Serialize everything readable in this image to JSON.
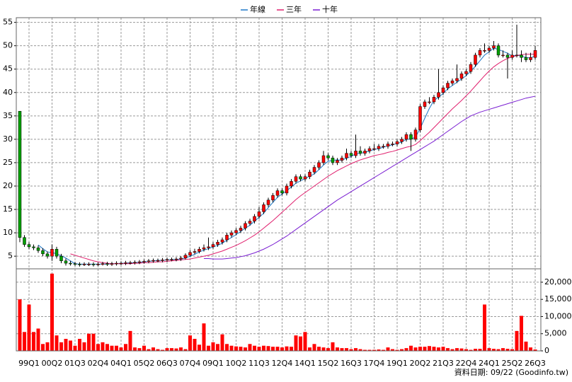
{
  "chart_data": [
    {
      "type": "candlestick",
      "categories": [
        null,
        null,
        "99Q1",
        null,
        null,
        null,
        null,
        "00Q2",
        null,
        null,
        null,
        null,
        "01Q3",
        null,
        null,
        null,
        null,
        "02Q4",
        null,
        null,
        null,
        null,
        "04Q1",
        null,
        null,
        null,
        null,
        "05Q2",
        null,
        null,
        null,
        null,
        "06Q3",
        null,
        null,
        null,
        null,
        "07Q4",
        null,
        null,
        null,
        null,
        "09Q1",
        null,
        null,
        null,
        null,
        "10Q2",
        null,
        null,
        null,
        null,
        "11Q3",
        null,
        null,
        null,
        null,
        "12Q4",
        null,
        null,
        null,
        null,
        "14Q1",
        null,
        null,
        null,
        null,
        "15Q2",
        null,
        null,
        null,
        null,
        "16Q3",
        null,
        null,
        null,
        null,
        "17Q4",
        null,
        null,
        null,
        null,
        "19Q1",
        null,
        null,
        null,
        null,
        "20Q2",
        null,
        null,
        null,
        null,
        "21Q3",
        null,
        null,
        null,
        null,
        "22Q4",
        null,
        null,
        null,
        null,
        "24Q1",
        null,
        null,
        null,
        null,
        "25Q2",
        null,
        null,
        null,
        null,
        "26Q3"
      ],
      "open": [
        36,
        9,
        7.5,
        7,
        6.8,
        6.2,
        5.5,
        5,
        6.5,
        5,
        4,
        3.5,
        3.4,
        3.3,
        3.2,
        3.3,
        3.3,
        3.2,
        3.3,
        3.4,
        3.3,
        3.4,
        3.5,
        3.5,
        3.6,
        3.6,
        3.7,
        3.8,
        3.9,
        4,
        4.1,
        4.1,
        4.2,
        4.3,
        4.3,
        4.4,
        4.6,
        5.2,
        5.8,
        6,
        6.5,
        6.8,
        7,
        7.5,
        8,
        8.5,
        9.5,
        10,
        10.5,
        11,
        12,
        12.5,
        13.5,
        14.5,
        16,
        17,
        18,
        19,
        18.5,
        20,
        21,
        22,
        21.5,
        22,
        23,
        24,
        25,
        26.5,
        26,
        25,
        25.5,
        26,
        27,
        26.5,
        27.5,
        27,
        27.5,
        28,
        28,
        28.5,
        28.5,
        29,
        29,
        29.5,
        30,
        31,
        30,
        32,
        37,
        38,
        38,
        39,
        40,
        41,
        42,
        42.5,
        43,
        44,
        44.5,
        46,
        48,
        49,
        49,
        49.5,
        50,
        48,
        48,
        47.5,
        48,
        48,
        47.5,
        47,
        47.5
      ],
      "high": [
        36,
        9.5,
        8,
        7.5,
        7.3,
        6.7,
        6,
        7.5,
        7,
        5.5,
        4.5,
        4,
        3.8,
        3.7,
        3.7,
        3.7,
        3.7,
        3.7,
        3.8,
        3.8,
        3.8,
        3.9,
        3.9,
        4,
        4,
        4.1,
        4.2,
        4.3,
        4.4,
        4.5,
        4.5,
        4.6,
        4.7,
        4.7,
        4.8,
        5,
        5.6,
        6.3,
        6.6,
        7,
        7.5,
        9,
        8,
        8.5,
        9,
        10,
        10.5,
        11,
        11.5,
        12.5,
        13,
        14,
        15.5,
        16.5,
        17.5,
        18.5,
        19.5,
        19.5,
        20.5,
        21.5,
        22.5,
        22.5,
        22.5,
        23.5,
        24.5,
        25.5,
        27.5,
        27,
        26.5,
        26,
        26.5,
        28,
        27.5,
        31,
        28.5,
        28,
        28.5,
        29,
        29,
        29,
        29.5,
        29.5,
        30,
        30.5,
        31.5,
        31.5,
        32.5,
        37.5,
        38.5,
        39,
        39.5,
        45,
        41.5,
        42.5,
        43,
        46,
        44.5,
        45,
        46.5,
        48.5,
        49.5,
        50.5,
        50,
        51,
        50.5,
        49,
        48.5,
        49,
        54.5,
        49,
        48.5,
        48.5,
        50
      ],
      "low": [
        8,
        7,
        6.5,
        6.3,
        5.7,
        5,
        4.5,
        4,
        4.5,
        3.5,
        3,
        3,
        2.9,
        2.8,
        2.9,
        2.9,
        2.8,
        2.9,
        3,
        2.9,
        2.9,
        3,
        3.1,
        3.1,
        3.2,
        3.2,
        3.3,
        3.4,
        3.5,
        3.6,
        3.7,
        3.7,
        3.8,
        3.9,
        3.9,
        4,
        4.3,
        4.8,
        5.4,
        5.6,
        6,
        6.3,
        6.6,
        7,
        7.5,
        8,
        9,
        9.5,
        10,
        10.5,
        11.5,
        12,
        13,
        14,
        15.5,
        16.5,
        17.5,
        18,
        18,
        19.5,
        20.5,
        21,
        21,
        21.5,
        22.5,
        23.5,
        24.5,
        25.5,
        24.5,
        24.5,
        25,
        25.5,
        26,
        26,
        26.5,
        26.5,
        27,
        27.5,
        27.5,
        28,
        28,
        28.5,
        28.5,
        29,
        29.5,
        27.5,
        29.5,
        31.5,
        36.5,
        37.5,
        37.5,
        38.5,
        39.5,
        40.5,
        41.5,
        42,
        42.5,
        43.5,
        44,
        45.5,
        47.5,
        48.5,
        48.5,
        49,
        47.5,
        47.5,
        43,
        47,
        47.5,
        46.5,
        46.5,
        46.5,
        47
      ],
      "close": [
        9,
        7.5,
        7,
        6.8,
        6.2,
        5.5,
        5,
        6.5,
        5,
        4,
        3.5,
        3.4,
        3.3,
        3.2,
        3.3,
        3.3,
        3.2,
        3.3,
        3.4,
        3.3,
        3.4,
        3.5,
        3.5,
        3.6,
        3.6,
        3.7,
        3.8,
        3.9,
        4,
        4.1,
        4.1,
        4.2,
        4.3,
        4.3,
        4.4,
        4.6,
        5.2,
        5.8,
        6,
        6.5,
        6.8,
        7,
        7.5,
        8,
        8.5,
        9.5,
        10,
        10.5,
        11,
        12,
        12.5,
        13.5,
        14.5,
        16,
        17,
        18,
        19,
        18.5,
        20,
        21,
        22,
        21.5,
        22,
        23,
        24,
        25,
        26.5,
        26,
        25,
        25.5,
        26,
        27,
        26.5,
        27.5,
        27,
        27.5,
        28,
        28,
        28.5,
        28.5,
        29,
        29,
        29.5,
        30,
        31,
        30,
        32,
        37,
        38,
        38,
        39,
        40,
        41,
        42,
        42.5,
        43,
        44,
        44.5,
        46,
        48,
        49,
        49,
        49.5,
        50,
        48,
        48,
        47.5,
        48,
        48,
        47.5,
        47,
        47.5,
        49
      ],
      "up_color": "#ff0000",
      "down_color": "#00a000",
      "series": [
        {
          "name": "年線",
          "color": "#1e78c8",
          "values": [
            null,
            null,
            null,
            null,
            7.4,
            6.6,
            5.9,
            5.8,
            5.5,
            5.1,
            4.6,
            4,
            3.4,
            3.3,
            3.3,
            3.3,
            3.3,
            3.3,
            3.3,
            3.3,
            3.4,
            3.4,
            3.5,
            3.5,
            3.6,
            3.6,
            3.7,
            3.8,
            3.9,
            4,
            4.1,
            4.1,
            4.2,
            4.3,
            4.3,
            4.4,
            4.6,
            5,
            5.4,
            5.9,
            6.3,
            6.6,
            7,
            7.3,
            7.8,
            8.4,
            9,
            9.6,
            10.3,
            11,
            11.6,
            12.5,
            13.3,
            14.2,
            15.4,
            16.5,
            17.6,
            18.3,
            19,
            19.8,
            20.6,
            21.1,
            21.6,
            22.1,
            22.6,
            23.5,
            24.5,
            25.3,
            25.5,
            25.6,
            25.5,
            26,
            26.3,
            26.9,
            27,
            27.2,
            27.5,
            27.8,
            28,
            28.3,
            28.6,
            28.8,
            29.1,
            29.4,
            30,
            30,
            30.5,
            32.3,
            34.5,
            36.6,
            38.3,
            39,
            39.8,
            40.8,
            41.5,
            42.2,
            42.9,
            43.6,
            44.6,
            45.6,
            46.8,
            48,
            48.7,
            49.5,
            49.2,
            48.8,
            48.4,
            47.8,
            48,
            47.8,
            47.5,
            47.4,
            47.8
          ]
        },
        {
          "name": "三年",
          "color": "#e0206e",
          "values": [
            null,
            null,
            null,
            null,
            null,
            null,
            null,
            null,
            null,
            null,
            null,
            5.5,
            5.2,
            4.9,
            4.6,
            4.3,
            4,
            3.8,
            3.6,
            3.5,
            3.4,
            3.4,
            3.4,
            3.4,
            3.4,
            3.5,
            3.5,
            3.6,
            3.6,
            3.7,
            3.8,
            3.8,
            3.9,
            4,
            4.1,
            4.2,
            4.3,
            4.4,
            4.6,
            4.8,
            5,
            5.2,
            5.5,
            5.8,
            6.1,
            6.5,
            6.9,
            7.3,
            7.8,
            8.3,
            8.9,
            9.5,
            10.2,
            11,
            11.8,
            12.6,
            13.5,
            14.4,
            15.3,
            16.2,
            17.1,
            17.9,
            18.6,
            19.3,
            20,
            20.7,
            21.4,
            22.1,
            22.7,
            23.3,
            23.8,
            24.3,
            24.8,
            25.2,
            25.6,
            25.9,
            26.2,
            26.5,
            26.7,
            26.9,
            27.2,
            27.4,
            27.7,
            28,
            28.3,
            28.5,
            28.9,
            29.7,
            30.6,
            31.5,
            32.5,
            33.5,
            34.5,
            35.5,
            36.5,
            37.4,
            38.3,
            39.3,
            40.3,
            41.4,
            42.5,
            43.6,
            44.6,
            45.5,
            46.2,
            46.8,
            47.3,
            47.6,
            47.9,
            48.1,
            48.2,
            48.2,
            48.2
          ]
        },
        {
          "name": "十年",
          "color": "#7a1ed2",
          "values": [
            null,
            null,
            null,
            null,
            null,
            null,
            null,
            null,
            null,
            null,
            null,
            null,
            null,
            null,
            null,
            null,
            null,
            null,
            null,
            null,
            null,
            null,
            null,
            null,
            null,
            null,
            null,
            null,
            null,
            null,
            null,
            null,
            null,
            null,
            null,
            null,
            null,
            null,
            null,
            null,
            4.5,
            4.5,
            4.4,
            4.4,
            4.4,
            4.5,
            4.6,
            4.7,
            4.9,
            5.1,
            5.4,
            5.7,
            6.1,
            6.5,
            7,
            7.5,
            8.1,
            8.7,
            9.3,
            10,
            10.7,
            11.4,
            12.1,
            12.8,
            13.5,
            14.2,
            14.9,
            15.6,
            16.3,
            17,
            17.6,
            18.2,
            18.8,
            19.4,
            20,
            20.6,
            21.2,
            21.8,
            22.4,
            23,
            23.6,
            24.2,
            24.8,
            25.4,
            26,
            26.6,
            27.2,
            27.8,
            28.4,
            29,
            29.6,
            30.3,
            31,
            31.7,
            32.4,
            33.1,
            33.8,
            34.4,
            35,
            35.4,
            35.8,
            36.1,
            36.4,
            36.7,
            37,
            37.3,
            37.6,
            37.9,
            38.2,
            38.5,
            38.8,
            39,
            39.2
          ]
        }
      ],
      "ylim": [
        2.3,
        56
      ],
      "yticks": [
        5,
        10,
        15,
        20,
        25,
        30,
        35,
        40,
        45,
        50,
        55
      ],
      "grid": true,
      "legend": "top"
    },
    {
      "type": "bar",
      "values": [
        15000,
        5500,
        13500,
        5500,
        6500,
        2000,
        2500,
        22500,
        4500,
        2500,
        3500,
        3000,
        1500,
        3500,
        2500,
        5000,
        5000,
        2000,
        2500,
        2000,
        1500,
        1500,
        1000,
        2000,
        5800,
        1000,
        800,
        1500,
        500,
        1000,
        500,
        300,
        800,
        800,
        700,
        1000,
        500,
        4500,
        3500,
        1800,
        8000,
        1500,
        2500,
        2000,
        4800,
        2000,
        1500,
        1300,
        1200,
        1000,
        2000,
        1500,
        1200,
        1500,
        1400,
        1200,
        1200,
        1000,
        1300,
        1200,
        4500,
        4200,
        5500,
        1000,
        2000,
        1200,
        1000,
        800,
        2500,
        1000,
        800,
        800,
        500,
        800,
        500,
        300,
        300,
        300,
        400,
        300,
        1000,
        500,
        300,
        500,
        800,
        1500,
        1000,
        1200,
        1200,
        1400,
        1200,
        1000,
        1200,
        800,
        500,
        800,
        700,
        500,
        300,
        600,
        600,
        13500,
        800,
        600,
        500,
        800,
        600,
        500,
        5800,
        10200,
        2700,
        1000,
        400
      ],
      "color": "#ff0000",
      "ylim": [
        0,
        23900
      ],
      "yticks": [
        0,
        {
          "value": 5000,
          "label": "5,000"
        },
        {
          "value": 10000,
          "label": "10,000"
        },
        {
          "value": 15000,
          "label": "15,000"
        },
        {
          "value": 20000,
          "label": "20,000"
        }
      ],
      "grid": true,
      "axis": "right"
    }
  ],
  "footer": "資料日期: 09/22 (Goodinfo.tw)"
}
